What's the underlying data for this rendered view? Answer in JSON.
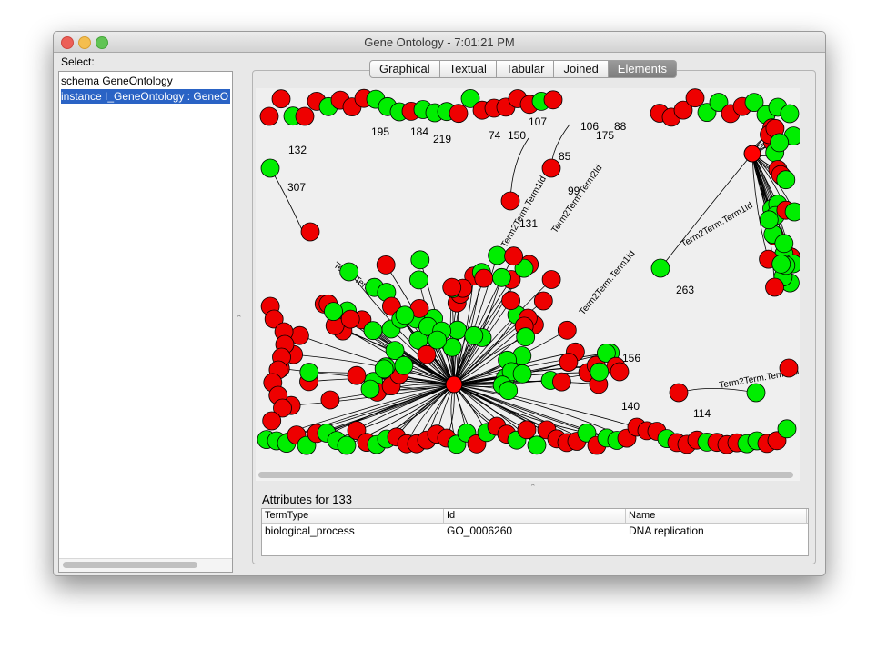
{
  "window": {
    "title": "Gene Ontology - 7:01:21 PM"
  },
  "sidebar": {
    "label": "Select:",
    "items": [
      {
        "label": "schema GeneOntology"
      },
      {
        "label": "instance I_GeneOntology : GeneO"
      }
    ]
  },
  "tabs": [
    {
      "label": "Graphical"
    },
    {
      "label": "Textual"
    },
    {
      "label": "Tabular"
    },
    {
      "label": "Joined"
    },
    {
      "label": "Elements"
    }
  ],
  "graph": {
    "node_labels": [
      "307",
      "99",
      "263",
      "156",
      "85",
      "175",
      "150",
      "219",
      "114",
      "132",
      "195",
      "184",
      "74",
      "88",
      "131",
      "140",
      "107",
      "106"
    ],
    "edge_labels": [
      "Term2Term.Term1Id",
      "Term2Term.Term2Id",
      "Term2Term.Term1Id",
      "Term2Term",
      "Term2Term.Term1Id",
      "Term2Term.Term1Id"
    ],
    "colors": {
      "green_node": "#00ee00",
      "red_node": "#ee0000",
      "hub": "#ff0000",
      "edge": "#000000",
      "background": "#efefef"
    }
  },
  "attributes": {
    "title": "Attributes for 133",
    "columns": [
      "TermType",
      "Id",
      "Name"
    ],
    "rows": [
      [
        "biological_process",
        "GO_0006260",
        "DNA replication"
      ]
    ]
  }
}
